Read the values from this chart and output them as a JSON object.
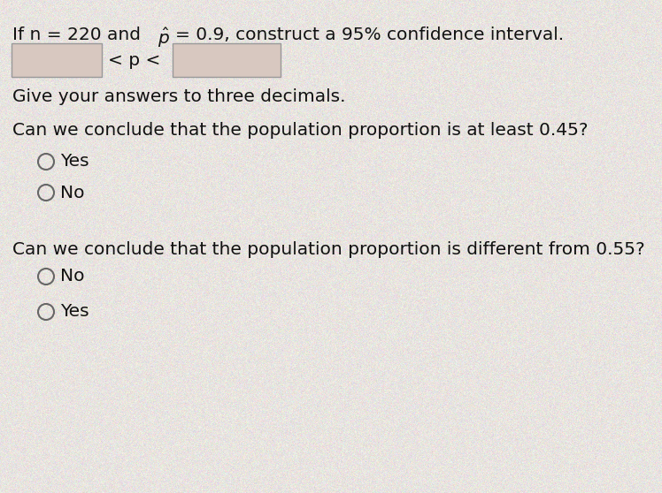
{
  "background_color": "#e8e4e0",
  "title_part1": "If n = 220 and ",
  "title_part2": "= 0.9, construct a 95% confidence interval.",
  "title_font_size": 14.5,
  "give_answers": "Give your answers to three decimals.",
  "q1": "Can we conclude that the population proportion is at least 0.45?",
  "q1_opt1": "Yes",
  "q1_opt2": "No",
  "q2": "Can we conclude that the population proportion is different from 0.55?",
  "q2_opt1": "No",
  "q2_opt2": "Yes",
  "text_color": "#111111",
  "box_fill": "#d8c8c0",
  "box_edge": "#999999",
  "circle_edge": "#666666"
}
